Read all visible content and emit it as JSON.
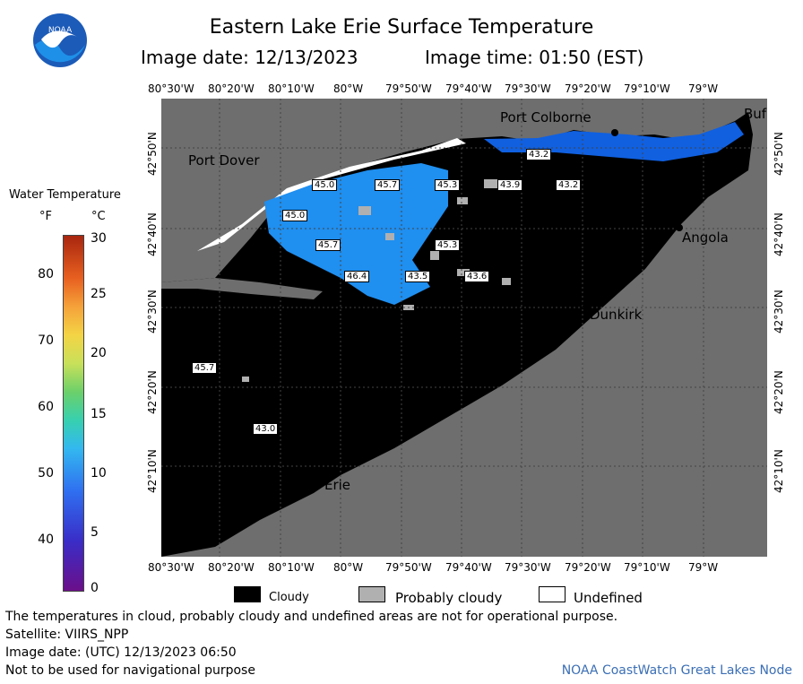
{
  "header": {
    "title": "Eastern Lake Erie Surface Temperature",
    "image_date": "Image date: 12/13/2023",
    "image_time": "Image time: 01:50 (EST)"
  },
  "logo": {
    "text": "NOAA"
  },
  "longitudes": [
    "80°30'W",
    "80°20'W",
    "80°10'W",
    "80°W",
    "79°50'W",
    "79°40'W",
    "79°30'W",
    "79°20'W",
    "79°10'W",
    "79°W"
  ],
  "latitudes": [
    "42°50'N",
    "42°40'N",
    "42°30'N",
    "42°20'N",
    "42°10'N"
  ],
  "cities": {
    "port_dover": "Port Dover",
    "port_colborne": "Port Colborne",
    "angola": "Angola",
    "dunkirk": "Dunkirk",
    "erie": "Erie",
    "buffalo": "Buf"
  },
  "temperature_labels": [
    "45.0",
    "45.7",
    "45.3",
    "43.9",
    "43.2",
    "43.2",
    "45.0",
    "45.7",
    "45.3",
    "46.4",
    "43.5",
    "43.6",
    "45.7",
    "43.0"
  ],
  "legend": {
    "title": "Water Temperature",
    "unit_f": "°F",
    "unit_c": "°C",
    "f_ticks": [
      "80",
      "70",
      "60",
      "50",
      "40"
    ],
    "c_ticks": [
      "30",
      "25",
      "20",
      "15",
      "10",
      "5",
      "0"
    ]
  },
  "key": {
    "cloudy": "Cloudy",
    "probably_cloudy": "Probably cloudy",
    "undefined": "Undefined"
  },
  "footer": {
    "note": "The temperatures in cloud, probably cloudy and undefined areas are not for operational purpose.",
    "satellite": "Satellite: VIIRS_NPP",
    "utc": "Image date: (UTC) 12/13/2023  06:50",
    "nav": "Not to be used for navigational purpose",
    "credit": "NOAA CoastWatch Great Lakes Node"
  },
  "colors": {
    "land": "#6e6e6e",
    "cloud": "#000000",
    "probably_cloudy": "#b0b0b0",
    "water_warm": "#1f8ff0",
    "water_cool": "#1060e0"
  }
}
